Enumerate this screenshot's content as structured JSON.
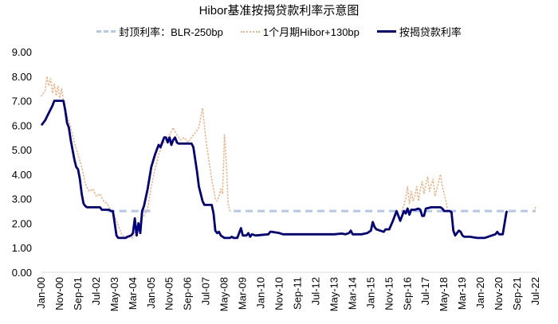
{
  "chart_data": {
    "type": "line",
    "title": "Hibor基准按揭贷款利率示意图",
    "xlabel": "",
    "ylabel": "",
    "ylim": [
      0,
      9
    ],
    "yticks": [
      "0.00",
      "1.00",
      "2.00",
      "3.00",
      "4.00",
      "5.00",
      "6.00",
      "7.00",
      "8.00",
      "9.00"
    ],
    "grid": false,
    "legend_position": "top",
    "x_tick_labels": [
      "Jan-00",
      "Nov-00",
      "Sep-01",
      "Jul-02",
      "May-03",
      "Mar-04",
      "Jan-05",
      "Nov-05",
      "Sep-06",
      "Jul-07",
      "May-08",
      "Mar-09",
      "Jan-10",
      "Nov-10",
      "Sep-11",
      "Jul-12",
      "May-13",
      "Mar-14",
      "Jan-15",
      "Nov-15",
      "Sep-16",
      "Jul-17",
      "May-18",
      "Mar-19",
      "Jan-20",
      "Nov-20",
      "Sep-21",
      "Jul-22"
    ],
    "x_range_months": [
      0,
      270
    ],
    "series": [
      {
        "name": "封顶利率：BLR-250bp",
        "style": "dashed",
        "color": "#b4c7e7",
        "segments": [
          [
            [
              36,
              2.5
            ],
            [
              60,
              2.5
            ],
            [
              62,
              2.55
            ]
          ],
          [
            [
              105,
              2.5
            ],
            [
              270,
              2.5
            ]
          ]
        ]
      },
      {
        "name": "1个月期Hibor+130bp",
        "style": "dotted",
        "color": "#f4b183",
        "points": [
          [
            0,
            7.2
          ],
          [
            2,
            7.4
          ],
          [
            3,
            8.0
          ],
          [
            4,
            7.6
          ],
          [
            5,
            7.9
          ],
          [
            6,
            7.3
          ],
          [
            7,
            7.7
          ],
          [
            8,
            7.2
          ],
          [
            9,
            7.6
          ],
          [
            10,
            7.1
          ],
          [
            11,
            7.5
          ],
          [
            12,
            7.0
          ],
          [
            14,
            6.4
          ],
          [
            16,
            5.9
          ],
          [
            18,
            5.3
          ],
          [
            20,
            4.8
          ],
          [
            22,
            4.3
          ],
          [
            24,
            3.6
          ],
          [
            26,
            3.3
          ],
          [
            28,
            3.4
          ],
          [
            30,
            3.1
          ],
          [
            32,
            3.2
          ],
          [
            34,
            2.9
          ],
          [
            36,
            2.8
          ],
          [
            38,
            2.5
          ],
          [
            40,
            2.3
          ],
          [
            44,
            1.5
          ],
          [
            50,
            1.4
          ],
          [
            52,
            1.8
          ],
          [
            54,
            2.1
          ],
          [
            56,
            2.3
          ],
          [
            58,
            2.6
          ],
          [
            60,
            3.5
          ],
          [
            62,
            4.2
          ],
          [
            64,
            4.8
          ],
          [
            66,
            5.2
          ],
          [
            68,
            5.4
          ],
          [
            70,
            5.6
          ],
          [
            72,
            5.9
          ],
          [
            74,
            5.6
          ],
          [
            76,
            5.4
          ],
          [
            78,
            5.5
          ],
          [
            80,
            5.3
          ],
          [
            82,
            5.5
          ],
          [
            84,
            5.7
          ],
          [
            86,
            5.9
          ],
          [
            87,
            6.3
          ],
          [
            88,
            6.7
          ],
          [
            89,
            6.0
          ],
          [
            90,
            5.3
          ],
          [
            92,
            4.3
          ],
          [
            93,
            3.8
          ],
          [
            94,
            3.4
          ],
          [
            95,
            3.0
          ],
          [
            96,
            2.9
          ],
          [
            97,
            3.1
          ],
          [
            98,
            3.4
          ],
          [
            99,
            3.2
          ],
          [
            100,
            5.6
          ],
          [
            101,
            4.5
          ],
          [
            102,
            2.8
          ],
          [
            103,
            2.5
          ]
        ],
        "points_2": [
          [
            197,
            2.5
          ],
          [
            199,
            3.0
          ],
          [
            200,
            3.5
          ],
          [
            201,
            2.8
          ],
          [
            202,
            3.3
          ],
          [
            203,
            2.9
          ],
          [
            204,
            3.1
          ],
          [
            205,
            3.5
          ],
          [
            206,
            2.9
          ],
          [
            207,
            3.4
          ],
          [
            208,
            3.7
          ],
          [
            209,
            3.2
          ],
          [
            210,
            3.6
          ],
          [
            211,
            3.9
          ],
          [
            212,
            3.3
          ],
          [
            213,
            3.6
          ],
          [
            214,
            3.8
          ],
          [
            215,
            3.1
          ],
          [
            216,
            3.4
          ],
          [
            217,
            3.7
          ],
          [
            218,
            4.0
          ],
          [
            219,
            3.5
          ],
          [
            220,
            3.2
          ],
          [
            221,
            2.9
          ],
          [
            222,
            2.5
          ]
        ],
        "points_3": [
          [
            269,
            2.5
          ],
          [
            270,
            2.65
          ]
        ]
      },
      {
        "name": "按揭贷款利率",
        "style": "solid",
        "color": "#000080",
        "points": [
          [
            0,
            6.0
          ],
          [
            2,
            6.2
          ],
          [
            4,
            6.5
          ],
          [
            6,
            6.8
          ],
          [
            7,
            7.0
          ],
          [
            12,
            7.0
          ],
          [
            13,
            6.6
          ],
          [
            14,
            6.1
          ],
          [
            15,
            5.9
          ],
          [
            16,
            5.4
          ],
          [
            17,
            5.0
          ],
          [
            18,
            4.6
          ],
          [
            19,
            4.3
          ],
          [
            20,
            4.2
          ],
          [
            21,
            3.8
          ],
          [
            22,
            3.2
          ],
          [
            23,
            2.8
          ],
          [
            24,
            2.7
          ],
          [
            25,
            2.65
          ],
          [
            32,
            2.65
          ],
          [
            33,
            2.55
          ],
          [
            37,
            2.55
          ],
          [
            38,
            2.5
          ],
          [
            39,
            2.5
          ],
          [
            40,
            2.0
          ],
          [
            41,
            1.5
          ],
          [
            42,
            1.4
          ],
          [
            46,
            1.4
          ],
          [
            47,
            1.45
          ],
          [
            49,
            1.5
          ],
          [
            50,
            1.6
          ],
          [
            51,
            2.2
          ],
          [
            52,
            1.5
          ],
          [
            53,
            2.0
          ],
          [
            54,
            1.6
          ],
          [
            55,
            2.5
          ],
          [
            56,
            2.7
          ],
          [
            58,
            3.4
          ],
          [
            60,
            4.3
          ],
          [
            62,
            4.8
          ],
          [
            63,
            5.0
          ],
          [
            64,
            5.2
          ],
          [
            65,
            5.1
          ],
          [
            66,
            5.3
          ],
          [
            67,
            5.5
          ],
          [
            68,
            5.5
          ],
          [
            69,
            5.3
          ],
          [
            70,
            5.5
          ],
          [
            71,
            5.2
          ],
          [
            72,
            5.4
          ],
          [
            73,
            5.5
          ],
          [
            74,
            5.3
          ],
          [
            75,
            5.25
          ],
          [
            80,
            5.25
          ],
          [
            82,
            5.25
          ],
          [
            83,
            5.1
          ],
          [
            84,
            4.6
          ],
          [
            85,
            4.1
          ],
          [
            86,
            3.5
          ],
          [
            87,
            3.2
          ],
          [
            88,
            2.9
          ],
          [
            89,
            2.75
          ],
          [
            93,
            2.75
          ],
          [
            94,
            2.4
          ],
          [
            95,
            1.7
          ],
          [
            96,
            1.6
          ],
          [
            97,
            1.65
          ],
          [
            98,
            1.5
          ],
          [
            99,
            1.45
          ],
          [
            100,
            1.4
          ],
          [
            103,
            1.4
          ],
          [
            104,
            1.45
          ],
          [
            105,
            1.4
          ],
          [
            107,
            1.4
          ],
          [
            109,
            1.8
          ],
          [
            110,
            1.5
          ],
          [
            112,
            1.5
          ],
          [
            113,
            1.6
          ],
          [
            114,
            1.45
          ],
          [
            115,
            1.55
          ],
          [
            117,
            1.5
          ],
          [
            124,
            1.55
          ],
          [
            125,
            1.65
          ],
          [
            126,
            1.65
          ],
          [
            130,
            1.6
          ],
          [
            132,
            1.55
          ],
          [
            135,
            1.55
          ],
          [
            140,
            1.55
          ],
          [
            145,
            1.55
          ],
          [
            150,
            1.55
          ],
          [
            155,
            1.55
          ],
          [
            160,
            1.55
          ],
          [
            164,
            1.58
          ],
          [
            166,
            1.55
          ],
          [
            168,
            1.6
          ],
          [
            169,
            1.7
          ],
          [
            170,
            1.55
          ],
          [
            172,
            1.55
          ],
          [
            175,
            1.55
          ],
          [
            178,
            1.6
          ],
          [
            180,
            1.7
          ],
          [
            181,
            2.05
          ],
          [
            182,
            1.85
          ],
          [
            183,
            1.75
          ],
          [
            185,
            1.7
          ],
          [
            187,
            1.65
          ],
          [
            188,
            1.75
          ],
          [
            190,
            1.75
          ],
          [
            192,
            2.1
          ],
          [
            194,
            2.5
          ],
          [
            195,
            2.3
          ],
          [
            196,
            2.1
          ],
          [
            198,
            2.5
          ],
          [
            199,
            2.4
          ],
          [
            200,
            2.6
          ],
          [
            201,
            2.35
          ],
          [
            202,
            2.55
          ],
          [
            204,
            2.55
          ],
          [
            206,
            2.6
          ],
          [
            207,
            2.55
          ],
          [
            208,
            2.3
          ],
          [
            209,
            2.3
          ],
          [
            210,
            2.6
          ],
          [
            213,
            2.65
          ],
          [
            216,
            2.65
          ],
          [
            218,
            2.65
          ],
          [
            219,
            2.6
          ],
          [
            220,
            2.5
          ],
          [
            223,
            2.5
          ],
          [
            224,
            2.45
          ],
          [
            225,
            1.7
          ],
          [
            226,
            1.5
          ],
          [
            227,
            1.6
          ],
          [
            228,
            1.7
          ],
          [
            229,
            1.65
          ],
          [
            230,
            1.5
          ],
          [
            231,
            1.45
          ],
          [
            234,
            1.45
          ],
          [
            238,
            1.4
          ],
          [
            242,
            1.4
          ],
          [
            244,
            1.45
          ],
          [
            246,
            1.5
          ],
          [
            248,
            1.55
          ],
          [
            249,
            1.65
          ],
          [
            250,
            1.55
          ],
          [
            251,
            1.55
          ],
          [
            252,
            1.55
          ],
          [
            253,
            2.0
          ],
          [
            254,
            2.45
          ],
          [
            254.5,
            2.5
          ]
        ]
      }
    ]
  },
  "legend": {
    "items": [
      {
        "label": "封顶利率：BLR-250bp"
      },
      {
        "label": "1个月期Hibor+130bp"
      },
      {
        "label": "按揭贷款利率"
      }
    ]
  }
}
